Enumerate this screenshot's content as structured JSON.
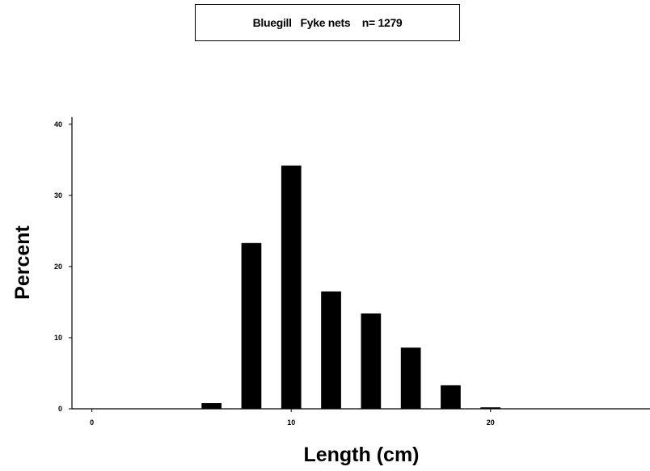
{
  "chart_data": {
    "type": "bar",
    "title": "Bluegill   Fyke nets    n= 1279",
    "xlabel": "Length  (cm)",
    "ylabel": "Percent",
    "xlim": [
      -1,
      28
    ],
    "ylim": [
      0,
      41
    ],
    "x_ticks": [
      0,
      10,
      20
    ],
    "y_ticks": [
      0,
      10,
      20,
      30,
      40
    ],
    "bar_width": 1,
    "bars": [
      {
        "x": 6,
        "value": 0.8
      },
      {
        "x": 8,
        "value": 23.3
      },
      {
        "x": 10,
        "value": 34.2
      },
      {
        "x": 12,
        "value": 16.5
      },
      {
        "x": 14,
        "value": 13.4
      },
      {
        "x": 16,
        "value": 8.6
      },
      {
        "x": 18,
        "value": 3.3
      },
      {
        "x": 20,
        "value": 0.2
      }
    ],
    "colors": {
      "bar": "#000000",
      "axis": "#000000",
      "background": "#ffffff"
    },
    "grid": false,
    "legend": "none"
  }
}
